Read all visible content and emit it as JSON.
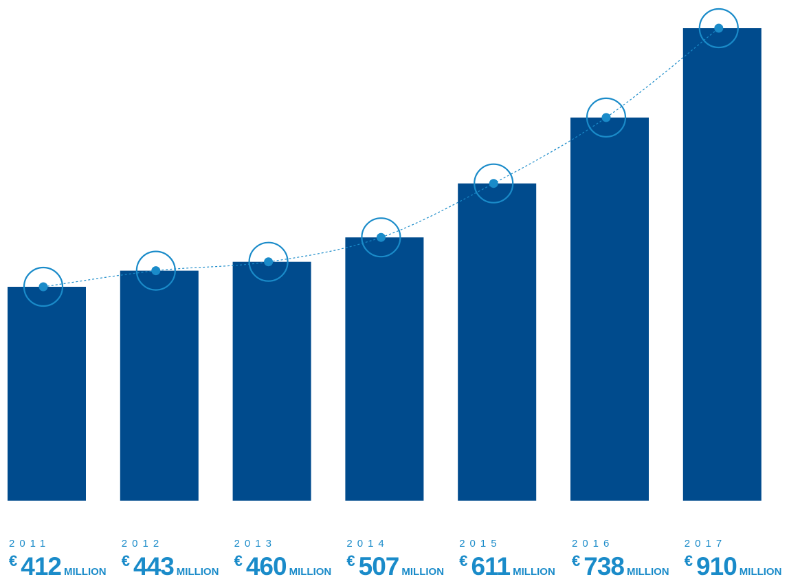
{
  "colors": {
    "bar": "#004b8d",
    "marker": "#1a8bc9",
    "label": "#1a8bc9",
    "year": "#1a8bc9"
  },
  "chart_data": {
    "type": "bar",
    "categories": [
      "2011",
      "2012",
      "2013",
      "2014",
      "2015",
      "2016",
      "2017"
    ],
    "values": [
      412,
      443,
      460,
      507,
      611,
      738,
      910
    ],
    "currency": "€",
    "unit": "MILLION",
    "title": "",
    "xlabel": "",
    "ylabel": "",
    "ylim": [
      0,
      950
    ],
    "grid": false,
    "legend": "none",
    "trend_line": true
  }
}
